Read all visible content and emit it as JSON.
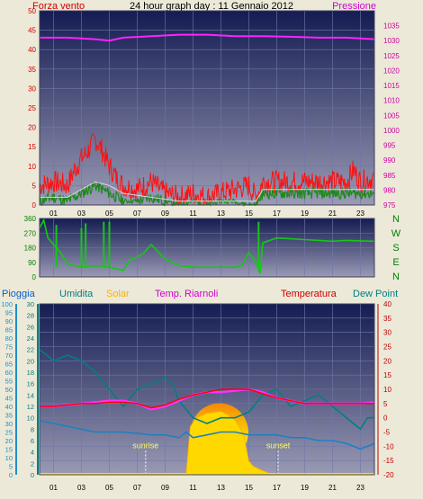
{
  "chart_data": [
    {
      "type": "line",
      "title": "24 hour graph day : 11 Gennaio 2012",
      "left_axis_label": "Forza vento",
      "right_axis_label": "Pressione",
      "x_ticks": [
        "01",
        "03",
        "05",
        "07",
        "09",
        "11",
        "13",
        "15",
        "17",
        "19",
        "21",
        "23"
      ],
      "left_ylim": [
        0,
        50
      ],
      "left_ticks": [
        0,
        5,
        10,
        15,
        20,
        25,
        30,
        35,
        40,
        45,
        50
      ],
      "right_ylim": [
        975,
        1040
      ],
      "right_ticks": [
        975,
        980,
        985,
        990,
        995,
        1000,
        1005,
        1010,
        1015,
        1020,
        1025,
        1030,
        1035
      ],
      "grid": true,
      "colors": {
        "gust": "#ff1010",
        "wind": "#1c8a1c",
        "avg": "#d8d8d8",
        "pressure": "#ff22ff",
        "axis_left": "#d00000",
        "axis_right": "#d000a0"
      },
      "series": [
        {
          "key": "pressure",
          "axis": "right",
          "x": [
            0,
            2,
            4,
            5,
            6,
            8,
            10,
            12,
            14,
            16,
            18,
            20,
            22,
            24
          ],
          "values": [
            1031,
            1031,
            1030.5,
            1030,
            1031,
            1031.5,
            1032,
            1032,
            1031.5,
            1031.5,
            1031.3,
            1031,
            1031,
            1030.5
          ]
        },
        {
          "key": "gust",
          "axis": "left",
          "x": [
            0,
            1,
            2,
            2.5,
            3,
            3.5,
            4,
            4.5,
            5,
            5.5,
            6,
            7,
            8,
            9,
            10,
            11,
            12,
            13,
            14,
            15,
            15.5,
            16,
            17,
            18,
            19,
            20,
            21,
            22,
            22.5,
            23,
            24
          ],
          "values": [
            5,
            6,
            5,
            9,
            12,
            14,
            17,
            14,
            10,
            7,
            5,
            4,
            6,
            3,
            2,
            3,
            2,
            3,
            4,
            5,
            2,
            6,
            6,
            6,
            6,
            6,
            6,
            6,
            9,
            6,
            7
          ]
        },
        {
          "key": "wind",
          "axis": "left",
          "x": [
            0,
            1,
            2,
            2.5,
            3,
            3.5,
            4,
            4.5,
            5,
            5.5,
            6,
            7,
            8,
            9,
            10,
            11,
            12,
            13,
            14,
            15,
            15.5,
            16,
            17,
            18,
            19,
            20,
            21,
            22,
            23,
            24
          ],
          "values": [
            1,
            2,
            1,
            2,
            3,
            4,
            5,
            4,
            3,
            2,
            1,
            1,
            2,
            1,
            0,
            1,
            0,
            1,
            1,
            0,
            0,
            3,
            3,
            3,
            3,
            3,
            3,
            3,
            3,
            3
          ]
        },
        {
          "key": "avg",
          "axis": "left",
          "x": [
            0,
            2,
            3,
            4,
            5,
            6,
            8,
            10,
            12,
            14,
            15.5,
            16,
            18,
            20,
            22,
            24
          ],
          "values": [
            2,
            2,
            4,
            6,
            5,
            3,
            2,
            1,
            1,
            1,
            1,
            4,
            4,
            4,
            4,
            4
          ]
        }
      ]
    },
    {
      "type": "line",
      "ylim": [
        0,
        360
      ],
      "left_ticks": [
        0,
        90,
        180,
        270,
        360
      ],
      "right_labels": [
        "N",
        "W",
        "S",
        "E",
        "N"
      ],
      "colors": {
        "direction": "#14c814"
      },
      "series": [
        {
          "key": "direction",
          "x": [
            0,
            0.3,
            0.6,
            1,
            1.5,
            2,
            3,
            4,
            5,
            6,
            6.5,
            7,
            7.5,
            8,
            9,
            10,
            11,
            12,
            13,
            14,
            14.5,
            15,
            15.5,
            15.8,
            16,
            17,
            18,
            19,
            20,
            21,
            22,
            23,
            24
          ],
          "values": [
            300,
            350,
            240,
            200,
            150,
            80,
            60,
            70,
            60,
            40,
            110,
            120,
            150,
            200,
            110,
            70,
            60,
            60,
            60,
            60,
            70,
            150,
            90,
            20,
            210,
            240,
            235,
            230,
            225,
            220,
            225,
            222,
            220
          ],
          "spikes": [
            {
              "x": 1.2,
              "v": 320
            },
            {
              "x": 3.0,
              "v": 300
            },
            {
              "x": 3.3,
              "v": 330
            },
            {
              "x": 4.6,
              "v": 340
            },
            {
              "x": 5.0,
              "v": 340
            },
            {
              "x": 15.7,
              "v": 340
            }
          ]
        }
      ]
    },
    {
      "type": "line",
      "legend": [
        "Pioggia",
        "Umidita",
        "Solar",
        "Temp. Riarnoli",
        "Temperatura",
        "Dew Point"
      ],
      "ylim_rain": [
        0,
        100
      ],
      "rain_ticks": [
        0,
        5,
        10,
        15,
        20,
        25,
        30,
        35,
        40,
        45,
        50,
        55,
        60,
        65,
        70,
        75,
        80,
        85,
        90,
        95,
        100
      ],
      "ylim_humidity": [
        0,
        30
      ],
      "humidity_ticks": [
        0,
        2,
        4,
        6,
        8,
        10,
        12,
        14,
        16,
        18,
        20,
        22,
        24,
        26,
        28,
        30
      ],
      "ylim_temp": [
        -20,
        40
      ],
      "temp_ticks": [
        -20,
        -15,
        -10,
        -5,
        0,
        5,
        10,
        15,
        20,
        25,
        30,
        35,
        40
      ],
      "annotations": [
        {
          "text": "sunrise",
          "x": 7.6
        },
        {
          "text": "sunset",
          "x": 17.1
        }
      ],
      "colors": {
        "rain": "#0090ff",
        "humidity": "#008080",
        "solar": "#ffb000",
        "riarnoli": "#ff30ff",
        "temperature": "#ff0000",
        "dewpoint": "#2080c0",
        "tick_blue": "#1e90c8",
        "tick_teal": "#008080",
        "tick_red": "#c00000"
      },
      "series": [
        {
          "key": "humidity",
          "axis": "humidity",
          "x": [
            0,
            0.5,
            1,
            2,
            3,
            4,
            5,
            6,
            7,
            8,
            9,
            9.5,
            10,
            11,
            12,
            13,
            14,
            15,
            16,
            17,
            18,
            19,
            20,
            21,
            22,
            23,
            23.5,
            24
          ],
          "values": [
            22,
            21,
            20,
            21,
            20,
            18,
            15,
            12,
            15,
            16,
            17,
            16,
            13,
            10,
            9,
            10,
            10,
            11,
            14,
            15,
            12,
            13,
            14,
            12,
            10,
            8,
            10,
            10
          ]
        },
        {
          "key": "riarnoli",
          "axis": "temp",
          "x": [
            0,
            1,
            2,
            3,
            4,
            5,
            6,
            7,
            8,
            9,
            10,
            11,
            12,
            13,
            14,
            15,
            16,
            17,
            18,
            19,
            20,
            21,
            22,
            23,
            24
          ],
          "values": [
            4,
            4,
            4.5,
            5,
            5.5,
            6,
            6,
            5,
            3,
            4,
            6,
            8,
            9,
            9,
            9.5,
            10,
            9,
            7,
            6,
            5,
            5,
            5,
            5,
            5,
            5.5
          ]
        },
        {
          "key": "temperature",
          "axis": "temp",
          "x": [
            0,
            1,
            2,
            3,
            4,
            5,
            6,
            7,
            8,
            9,
            10,
            11,
            12,
            13,
            14,
            15,
            16,
            17,
            18,
            19,
            20,
            21,
            22,
            23,
            24
          ],
          "values": [
            4,
            4,
            4.5,
            5,
            5,
            5.5,
            5.5,
            5,
            3.5,
            4.5,
            6.5,
            8,
            9,
            10,
            10,
            10,
            8.5,
            7,
            6,
            5,
            5,
            5,
            5,
            5,
            5
          ]
        },
        {
          "key": "dewpoint",
          "axis": "temp",
          "x": [
            0,
            1,
            2,
            3,
            4,
            5,
            6,
            7,
            8,
            9,
            10,
            10.5,
            11,
            12,
            13,
            14,
            15,
            16,
            17,
            18,
            19,
            20,
            21,
            22,
            23,
            24
          ],
          "values": [
            -1,
            -2,
            -3,
            -4,
            -5,
            -5,
            -5,
            -5.5,
            -6,
            -6,
            -7,
            -5,
            -7,
            -6,
            -5,
            -5,
            -6,
            -6,
            -6,
            -7,
            -7,
            -8,
            -8,
            -9,
            -11,
            -9
          ]
        },
        {
          "key": "solar",
          "axis": "rain",
          "x": [
            10.5,
            10.8,
            11.2,
            12,
            13,
            13.5,
            14,
            14.6,
            15,
            15.3,
            15.8,
            16.4,
            17
          ],
          "values": [
            0,
            28,
            33,
            36,
            37,
            35,
            32,
            24,
            8,
            5,
            3,
            1,
            0
          ]
        }
      ]
    }
  ]
}
